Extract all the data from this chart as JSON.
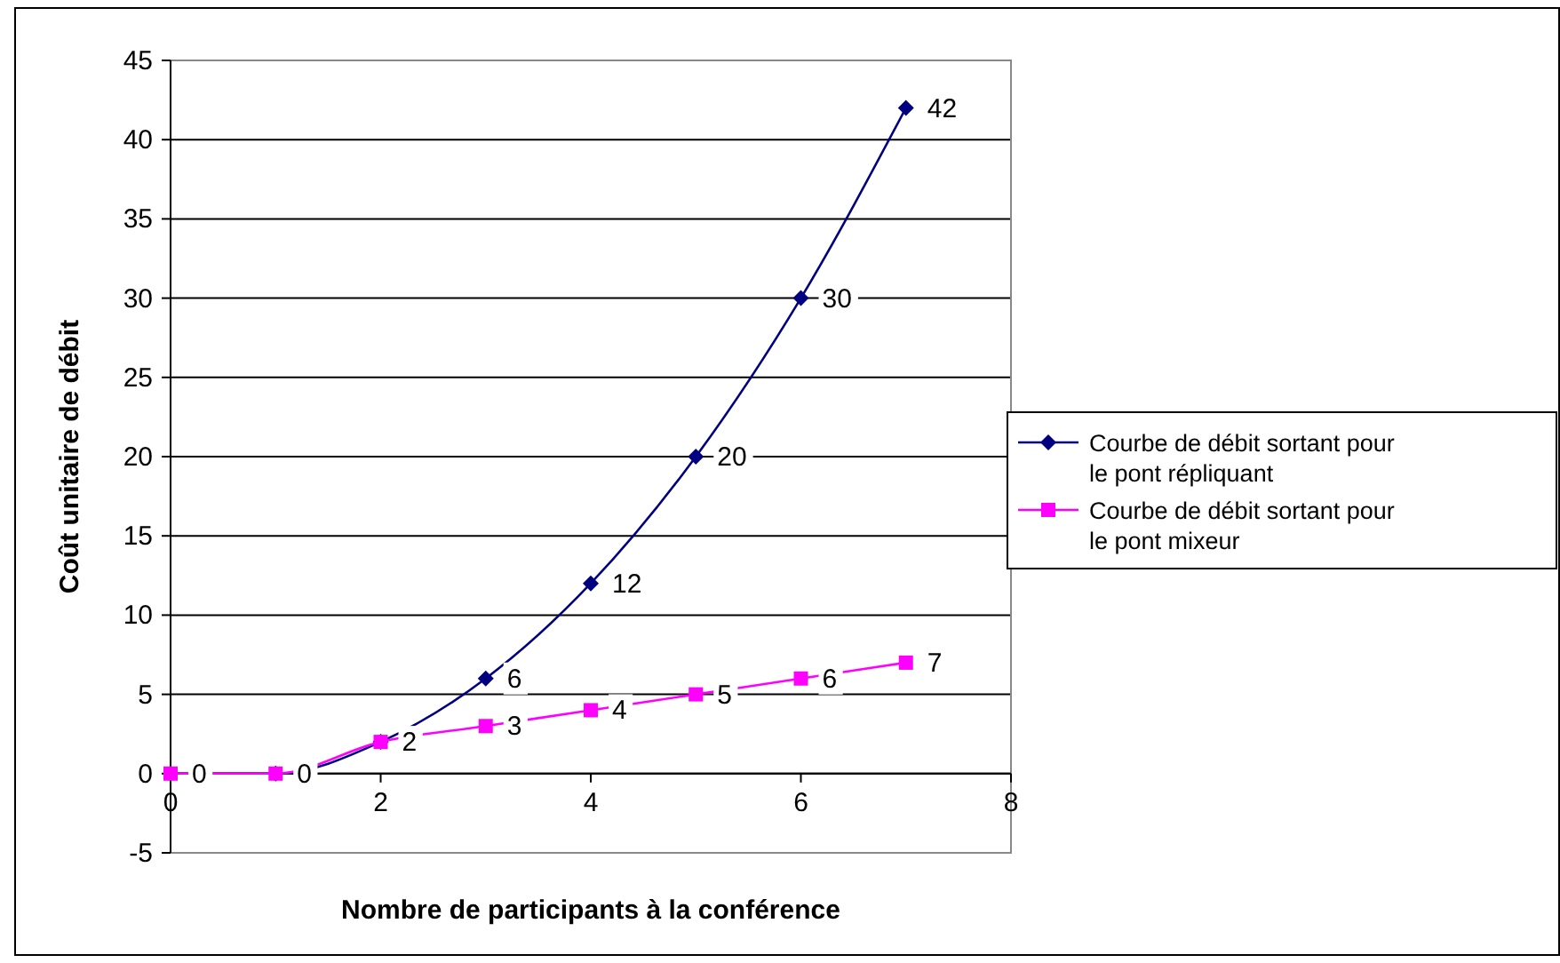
{
  "chart_data": {
    "type": "line",
    "xlabel": "Nombre de participants à la conférence",
    "ylabel": "Coût unitaire de débit",
    "x": [
      0,
      1,
      2,
      3,
      4,
      5,
      6,
      7
    ],
    "series": [
      {
        "name": "Courbe de débit sortant pour le pont répliquant",
        "color": "#000080",
        "marker": "diamond",
        "values": [
          0,
          0,
          2,
          6,
          12,
          20,
          30,
          42
        ],
        "value_labels": [
          null,
          null,
          null,
          "6",
          "12",
          "20",
          "30",
          "42"
        ]
      },
      {
        "name": "Courbe de débit sortant pour le pont mixeur",
        "color": "#ff00ff",
        "marker": "square",
        "values": [
          0,
          0,
          2,
          3,
          4,
          5,
          6,
          7
        ],
        "value_labels": [
          "0",
          "0",
          "2",
          "3",
          "4",
          "5",
          "6",
          "7"
        ]
      }
    ],
    "xlim": [
      0,
      8
    ],
    "xticks": [
      0,
      2,
      4,
      6,
      8
    ],
    "ylim": [
      -5,
      45
    ],
    "yticks": [
      -5,
      0,
      5,
      10,
      15,
      20,
      25,
      30,
      35,
      40,
      45
    ],
    "grid": "y",
    "legend": "right",
    "line_style": "solid"
  }
}
